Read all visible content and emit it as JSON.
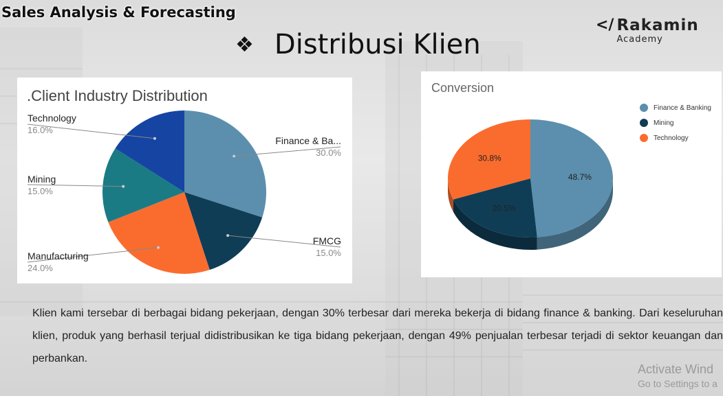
{
  "header": {
    "title": "Sales Analysis & Forecasting"
  },
  "slide": {
    "bullet": "❖",
    "title": "Distribusi Klien"
  },
  "logo": {
    "mark": "</",
    "name": "Rakamin",
    "sub": "Academy"
  },
  "colors": {
    "finance": "#5b8fad",
    "fmcg": "#0f3d56",
    "manufacturing": "#fa6c2e",
    "mining": "#1b7b85",
    "technology": "#1644a3"
  },
  "chart_data": [
    {
      "type": "pie",
      "title": ".Client Industry Distribution",
      "slices": [
        {
          "label": "Finance & Ba...",
          "value": 30.0,
          "value_label": "30.0%",
          "color": "#5b8fad"
        },
        {
          "label": "FMCG",
          "value": 15.0,
          "value_label": "15.0%",
          "color": "#0f3d56"
        },
        {
          "label": "Manufacturing",
          "value": 24.0,
          "value_label": "24.0%",
          "color": "#fa6c2e"
        },
        {
          "label": "Mining",
          "value": 15.0,
          "value_label": "15.0%",
          "color": "#1b7b85"
        },
        {
          "label": "Technology",
          "value": 16.0,
          "value_label": "16.0%",
          "color": "#1644a3"
        }
      ]
    },
    {
      "type": "pie",
      "title": "Conversion",
      "style": "3d",
      "legend_position": "right",
      "slices": [
        {
          "label": "Finance & Banking",
          "value": 48.7,
          "value_label": "48.7%",
          "color": "#5b8fad"
        },
        {
          "label": "Mining",
          "value": 20.5,
          "value_label": "20.5%",
          "color": "#0f3d56"
        },
        {
          "label": "Technology",
          "value": 30.8,
          "value_label": "30.8%",
          "color": "#fa6c2e"
        }
      ]
    }
  ],
  "body": {
    "text": "Klien kami tersebar di berbagai bidang pekerjaan, dengan 30% terbesar dari mereka bekerja di bidang finance & banking. Dari keseluruhan klien, produk yang berhasil terjual didistribusikan ke tiga bidang pekerjaan, dengan 49% penjualan terbesar terjadi di sektor keuangan dan perbankan."
  },
  "watermark": {
    "line1": "Activate Wind",
    "line2": "Go to Settings to a"
  }
}
